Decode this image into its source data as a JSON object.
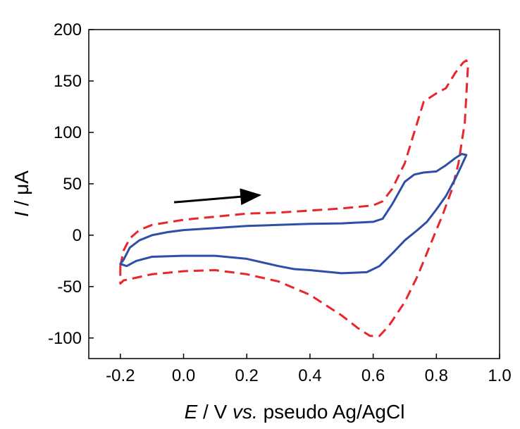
{
  "chart_data": {
    "type": "line",
    "title": "",
    "xlabel": {
      "symbol": "E",
      "rest": " / V ",
      "vs": "vs.",
      "ref": " pseudo Ag/AgCl"
    },
    "ylabel": {
      "symbol": "I",
      "rest": " / μA"
    },
    "xlim": [
      -0.3,
      1.0
    ],
    "ylim": [
      -120,
      200
    ],
    "xticks": [
      -0.2,
      0.0,
      0.2,
      0.4,
      0.6,
      0.8,
      1.0
    ],
    "xtick_labels": [
      "-0.2",
      "0.0",
      "0.2",
      "0.4",
      "0.6",
      "0.8",
      "1.0"
    ],
    "yticks": [
      -100,
      -50,
      0,
      50,
      100,
      150,
      200
    ],
    "ytick_labels": [
      "-100",
      "-50",
      "0",
      "50",
      "100",
      "150",
      "200"
    ],
    "grid": false,
    "legend": "none",
    "annotations": [
      {
        "type": "arrow",
        "from": [
          -0.03,
          32
        ],
        "to": [
          0.24,
          39
        ],
        "color": "#000000"
      }
    ],
    "series": [
      {
        "color": "#e8262b",
        "dash": "dashed",
        "points": [
          [
            -0.2,
            -30
          ],
          [
            -0.19,
            -15
          ],
          [
            -0.17,
            -3
          ],
          [
            -0.14,
            5
          ],
          [
            -0.1,
            10
          ],
          [
            0.0,
            15
          ],
          [
            0.1,
            18
          ],
          [
            0.2,
            21
          ],
          [
            0.3,
            22
          ],
          [
            0.4,
            24
          ],
          [
            0.5,
            26
          ],
          [
            0.6,
            29
          ],
          [
            0.63,
            33
          ],
          [
            0.66,
            45
          ],
          [
            0.7,
            70
          ],
          [
            0.73,
            100
          ],
          [
            0.76,
            130
          ],
          [
            0.8,
            138
          ],
          [
            0.83,
            143
          ],
          [
            0.86,
            158
          ],
          [
            0.885,
            168
          ],
          [
            0.895,
            170
          ],
          [
            0.9,
            165
          ],
          [
            0.89,
            110
          ],
          [
            0.87,
            70
          ],
          [
            0.85,
            45
          ],
          [
            0.82,
            20
          ],
          [
            0.78,
            -10
          ],
          [
            0.74,
            -40
          ],
          [
            0.7,
            -65
          ],
          [
            0.65,
            -88
          ],
          [
            0.62,
            -98
          ],
          [
            0.59,
            -98
          ],
          [
            0.55,
            -90
          ],
          [
            0.5,
            -78
          ],
          [
            0.4,
            -58
          ],
          [
            0.3,
            -45
          ],
          [
            0.2,
            -38
          ],
          [
            0.1,
            -34
          ],
          [
            0.0,
            -35
          ],
          [
            -0.1,
            -38
          ],
          [
            -0.19,
            -44
          ],
          [
            -0.2,
            -47
          ],
          [
            -0.2,
            -30
          ]
        ]
      },
      {
        "color": "#2e4fa8",
        "dash": "solid",
        "points": [
          [
            -0.2,
            -28
          ],
          [
            -0.19,
            -24
          ],
          [
            -0.17,
            -12
          ],
          [
            -0.14,
            -5
          ],
          [
            -0.1,
            0
          ],
          [
            -0.05,
            3
          ],
          [
            0.0,
            5
          ],
          [
            0.1,
            7
          ],
          [
            0.2,
            9
          ],
          [
            0.3,
            10
          ],
          [
            0.4,
            11
          ],
          [
            0.5,
            11.5
          ],
          [
            0.6,
            13
          ],
          [
            0.63,
            16
          ],
          [
            0.66,
            30
          ],
          [
            0.7,
            52
          ],
          [
            0.73,
            59
          ],
          [
            0.76,
            61
          ],
          [
            0.8,
            62
          ],
          [
            0.83,
            68
          ],
          [
            0.86,
            75
          ],
          [
            0.88,
            79
          ],
          [
            0.895,
            78
          ],
          [
            0.88,
            68
          ],
          [
            0.86,
            55
          ],
          [
            0.83,
            38
          ],
          [
            0.8,
            25
          ],
          [
            0.77,
            13
          ],
          [
            0.74,
            5
          ],
          [
            0.7,
            -5
          ],
          [
            0.66,
            -18
          ],
          [
            0.62,
            -30
          ],
          [
            0.58,
            -36
          ],
          [
            0.5,
            -37
          ],
          [
            0.4,
            -34
          ],
          [
            0.35,
            -33
          ],
          [
            0.3,
            -30
          ],
          [
            0.2,
            -23
          ],
          [
            0.1,
            -20
          ],
          [
            0.0,
            -20
          ],
          [
            -0.1,
            -21
          ],
          [
            -0.15,
            -25
          ],
          [
            -0.18,
            -30
          ],
          [
            -0.2,
            -28
          ]
        ]
      }
    ]
  }
}
